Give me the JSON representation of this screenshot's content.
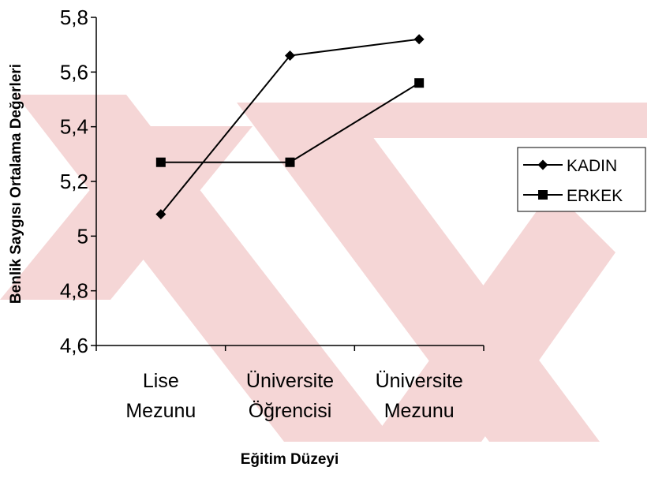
{
  "chart_data": {
    "type": "line",
    "xlabel": "Eğitim Düzeyi",
    "ylabel": "Benlik Saygısı Ortalama Değerleri",
    "categories": [
      [
        "Lise",
        "Mezunu"
      ],
      [
        "Üniversite",
        "Öğrencisi"
      ],
      [
        "Üniversite",
        "Mezunu"
      ]
    ],
    "ylim": [
      4.6,
      5.8
    ],
    "yticks": [
      4.6,
      4.8,
      5,
      5.2,
      5.4,
      5.6,
      5.8
    ],
    "ytick_labels": [
      "4,6",
      "4,8",
      "5",
      "5,2",
      "5,4",
      "5,6",
      "5,8"
    ],
    "grid": false,
    "legend_position": "right",
    "series": [
      {
        "name": "KADIN",
        "marker": "diamond",
        "values": [
          5.08,
          5.66,
          5.72
        ]
      },
      {
        "name": "ERKEK",
        "marker": "square",
        "values": [
          5.27,
          5.27,
          5.56
        ]
      }
    ]
  },
  "watermark_color": "#f5d6d6"
}
